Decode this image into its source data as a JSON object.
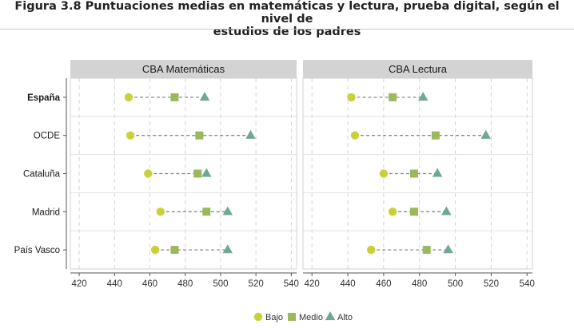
{
  "figure": {
    "title_line1": "Figura 3.8 Puntuaciones medias en matemáticas y lectura, prueba digital, según el nivel de",
    "title_line2": "estudios de los padres"
  },
  "chart_data": {
    "type": "dot",
    "panels": [
      {
        "title": "CBA Matemáticas",
        "rows": [
          {
            "label": "España",
            "bold": true,
            "Bajo": 448,
            "Medio": 474,
            "Alto": 491
          },
          {
            "label": "OCDE",
            "bold": false,
            "Bajo": 449,
            "Medio": 488,
            "Alto": 517
          },
          {
            "label": "Cataluña",
            "bold": false,
            "Bajo": 459,
            "Medio": 487,
            "Alto": 492
          },
          {
            "label": "Madrid",
            "bold": false,
            "Bajo": 466,
            "Medio": 492,
            "Alto": 504
          },
          {
            "label": "País Vasco",
            "bold": false,
            "Bajo": 463,
            "Medio": 474,
            "Alto": 504
          }
        ]
      },
      {
        "title": "CBA Lectura",
        "rows": [
          {
            "label": "España",
            "bold": true,
            "Bajo": 442,
            "Medio": 465,
            "Alto": 482
          },
          {
            "label": "OCDE",
            "bold": false,
            "Bajo": 444,
            "Medio": 489,
            "Alto": 517
          },
          {
            "label": "Cataluña",
            "bold": false,
            "Bajo": 460,
            "Medio": 477,
            "Alto": 490
          },
          {
            "label": "Madrid",
            "bold": false,
            "Bajo": 465,
            "Medio": 477,
            "Alto": 495
          },
          {
            "label": "País Vasco",
            "bold": false,
            "Bajo": 453,
            "Medio": 484,
            "Alto": 496
          }
        ]
      }
    ],
    "xlim": [
      415,
      543
    ],
    "xticks": [
      420,
      440,
      460,
      480,
      500,
      520,
      540
    ],
    "grid": true,
    "legend_position": "bottom",
    "series": [
      {
        "name": "Bajo",
        "marker": "circle",
        "color": "#c9d139"
      },
      {
        "name": "Medio",
        "marker": "square",
        "color": "#9cb85c"
      },
      {
        "name": "Alto",
        "marker": "triangle",
        "color": "#6fa894"
      }
    ],
    "colors": {
      "connector": "#888888",
      "strip": "#d3d3d3",
      "grid": "#d6d6d6",
      "axis_text": "#333333"
    }
  }
}
